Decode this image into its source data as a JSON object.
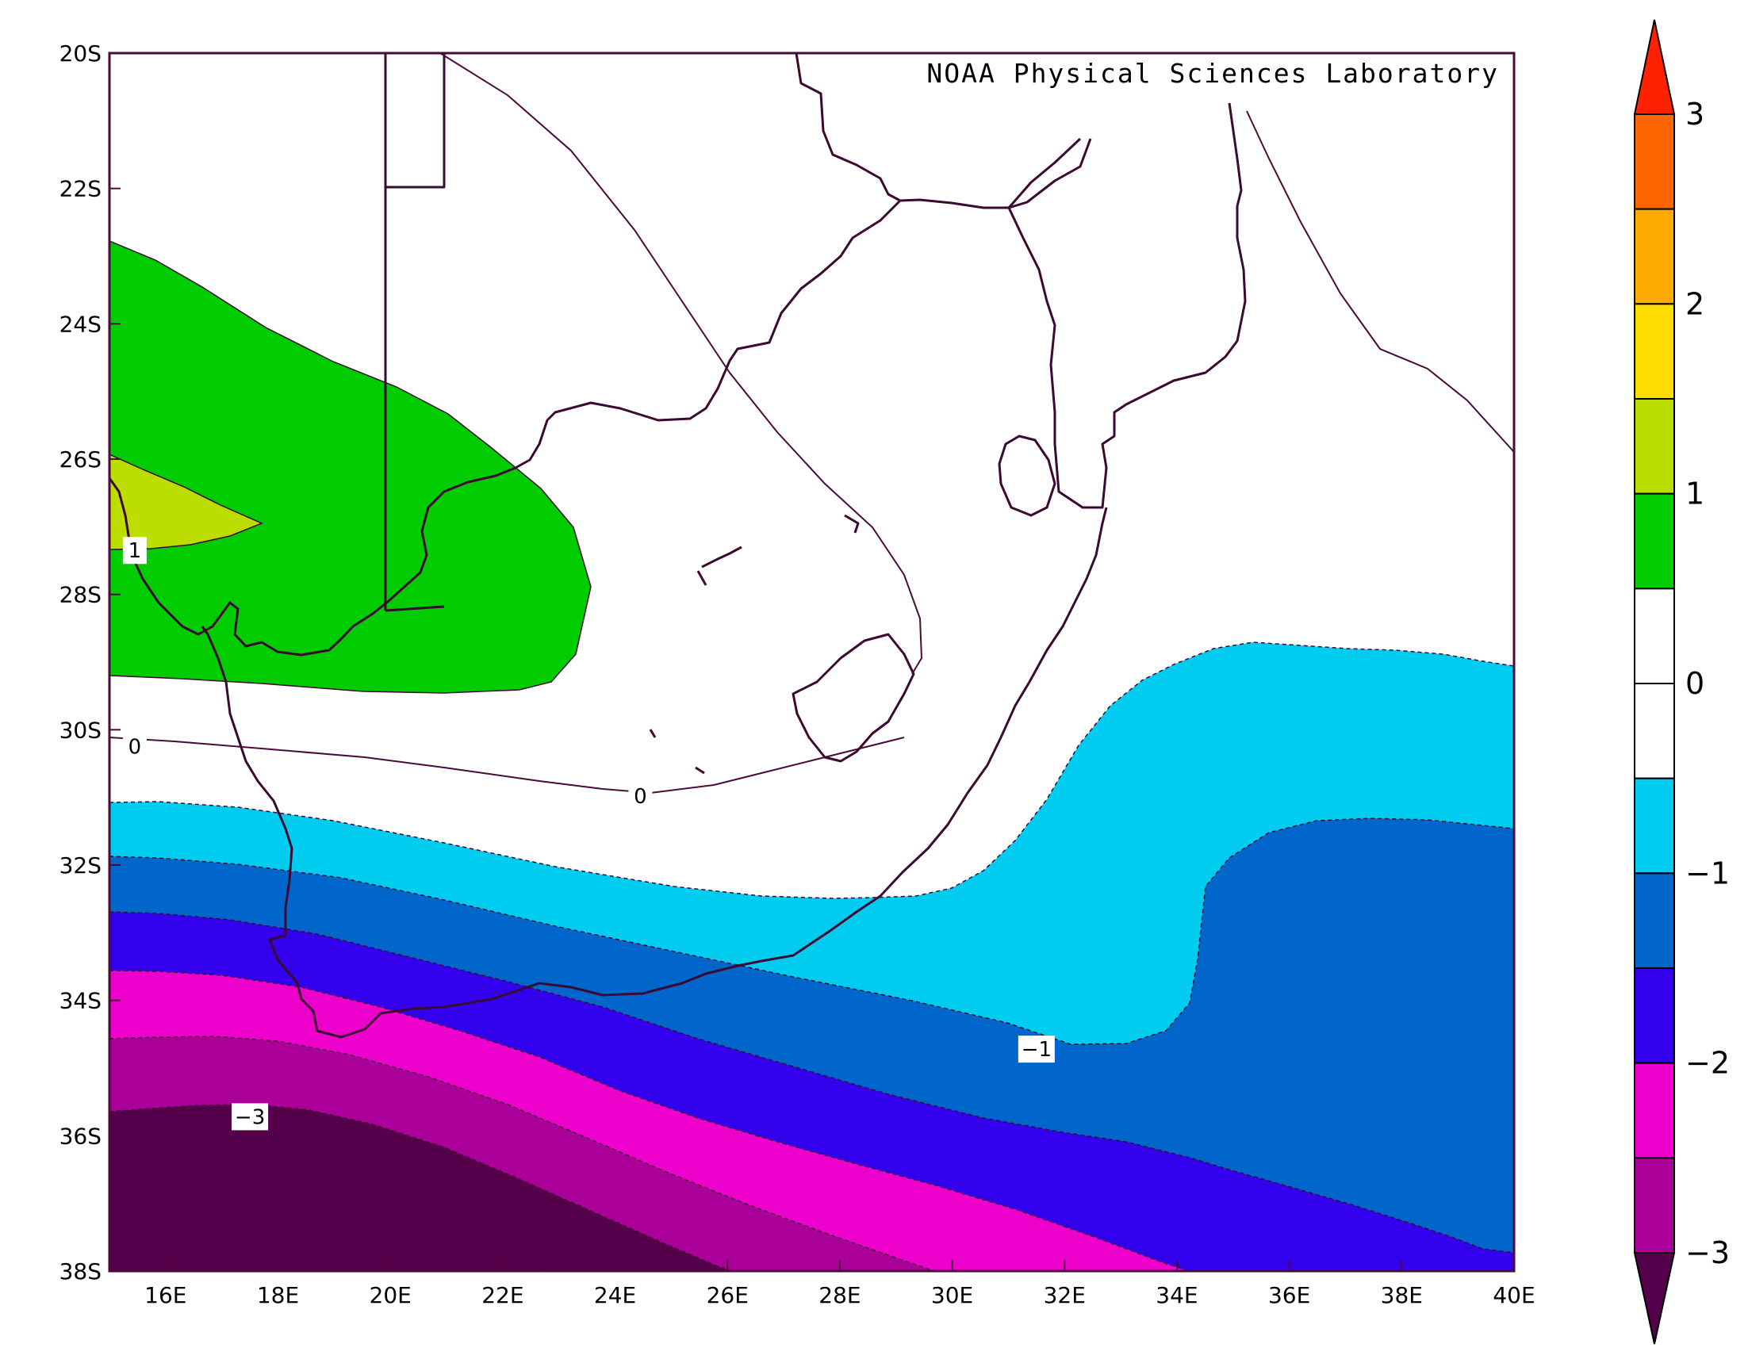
{
  "credit": "NOAA Physical Sciences Laboratory",
  "colors": {
    "frame": "#4a0a3a",
    "boundary": "#3a0a30",
    "levels": [
      "#55004a",
      "#aa0099",
      "#ee00cc",
      "#3300ee",
      "#0066cc",
      "#00ccf0",
      "#ffffff",
      "#ffffff",
      "#00cc00",
      "#bbdd00",
      "#ffdd00",
      "#ffaa00",
      "#ff6600",
      "#ff2200"
    ]
  },
  "chart_data": {
    "type": "heatmap",
    "title": "",
    "xlabel": "",
    "ylabel": "",
    "xlim": [
      15,
      40
    ],
    "ylim": [
      -38,
      -20
    ],
    "x_ticks": [
      "16E",
      "18E",
      "20E",
      "22E",
      "24E",
      "26E",
      "28E",
      "30E",
      "32E",
      "34E",
      "36E",
      "38E",
      "40E"
    ],
    "y_ticks": [
      "20S",
      "22S",
      "24S",
      "26S",
      "28S",
      "30S",
      "32S",
      "34S",
      "36S",
      "38S"
    ],
    "colorbar": {
      "ticks": [
        "3",
        "2",
        "1",
        "0",
        "−1",
        "−2",
        "−3"
      ],
      "levels": [
        -3,
        -2.5,
        -2,
        -1.5,
        -1,
        -0.5,
        0,
        0.5,
        1,
        1.5,
        2,
        2.5,
        3
      ],
      "extend": "both"
    },
    "contour_labels": [
      {
        "text": "1",
        "lon": 15.45,
        "lat": -27.35
      },
      {
        "text": "0",
        "lon": 15.45,
        "lat": -30.25
      },
      {
        "text": "0",
        "lon": 24.45,
        "lat": -30.98
      },
      {
        "text": "−1",
        "lon": 31.5,
        "lat": -34.72
      },
      {
        "text": "−3",
        "lon": 17.5,
        "lat": -35.72
      }
    ]
  }
}
